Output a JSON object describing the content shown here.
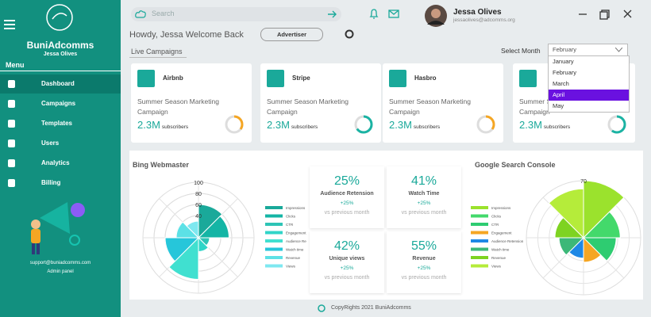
{
  "sidebar": {
    "brand": "BuniAdcomms",
    "user": "Jessa Olives",
    "menu_title": "Menu",
    "menu": [
      "Dashboard",
      "Campaigns",
      "Templates",
      "Users",
      "Analytics",
      "Billing"
    ],
    "active": 0,
    "support_email": "support@buniadcomms.com",
    "role": "Admin panel"
  },
  "topbar": {
    "search_placeholder": "Search",
    "user_name": "Jessa Olives",
    "user_email": "jessaolives@adcomms.org"
  },
  "header": {
    "greeting": "Howdy, Jessa Welcome Back",
    "role_button": "Advertiser",
    "section": "Live Campaigns",
    "month_label": "Select Month",
    "month_selected": "February",
    "month_options": [
      "January",
      "February",
      "March",
      "April",
      "May"
    ],
    "highlighted_option": 3
  },
  "campaigns": [
    {
      "name": "Airbnb",
      "description": "Summer Season Marketing Campaign",
      "subscribers": "2.3M",
      "unit": "subscribers",
      "progress": 35,
      "color": "#f5a623"
    },
    {
      "name": "Stripe",
      "description": "Summer Season Marketing Campaign",
      "subscribers": "2.3M",
      "unit": "subscribers",
      "progress": 65,
      "color": "#1ab3a3"
    },
    {
      "name": "Hasbro",
      "description": "Summer Season Marketing Campaign",
      "subscribers": "2.3M",
      "unit": "subscribers",
      "progress": 35,
      "color": "#f5a623"
    },
    {
      "description": "Summer Season Marketing Campaign",
      "subscribers": "2.3M",
      "unit": "subscribers",
      "progress": 60,
      "color": "#1ab3a3"
    }
  ],
  "bing_chart": {
    "type": "polarArea",
    "title": "Bing Webmaster",
    "categories": [
      "Impressions",
      "Clicks",
      "CTR",
      "Engagement",
      "Audience Re",
      "Watch time",
      "Revenue",
      "Views"
    ],
    "values": [
      60,
      55,
      20,
      25,
      75,
      60,
      40,
      30
    ],
    "colors": [
      "#1aa99a",
      "#14b5a5",
      "#2ec4b6",
      "#30d5c8",
      "#40e0d0",
      "#26c6da",
      "#5ce1e6",
      "#7ee8f0"
    ],
    "rlim": [
      0,
      100
    ],
    "rticks": [
      40,
      60,
      80,
      100
    ]
  },
  "stats": [
    {
      "value": "25%",
      "label": "Audience Retension",
      "change": "+25%",
      "note": "vs previous month"
    },
    {
      "value": "41%",
      "label": "Watch Time",
      "change": "+25%",
      "note": "vs previous month"
    },
    {
      "value": "42%",
      "label": "Unique views",
      "change": "+25%",
      "note": "vs previous month"
    },
    {
      "value": "55%",
      "label": "Revenue",
      "change": "+25%",
      "note": "vs previous month"
    }
  ],
  "google_chart": {
    "type": "polarArea",
    "title": "Google Search Console",
    "categories": [
      "Impressions",
      "Clicks",
      "CTR",
      "Engagement",
      "Audience Retension",
      "Watch time",
      "Revenue",
      "Views"
    ],
    "values": [
      70,
      45,
      40,
      30,
      25,
      30,
      35,
      60
    ],
    "colors": [
      "#9be22d",
      "#43d96b",
      "#2ecc71",
      "#f5a623",
      "#1e88e5",
      "#3cb878",
      "#7ed321",
      "#b5ec3a"
    ],
    "rlim": [
      0,
      70
    ],
    "rticks": [
      70
    ]
  },
  "footer": "CopyRights 2021 BuniAdcomms"
}
